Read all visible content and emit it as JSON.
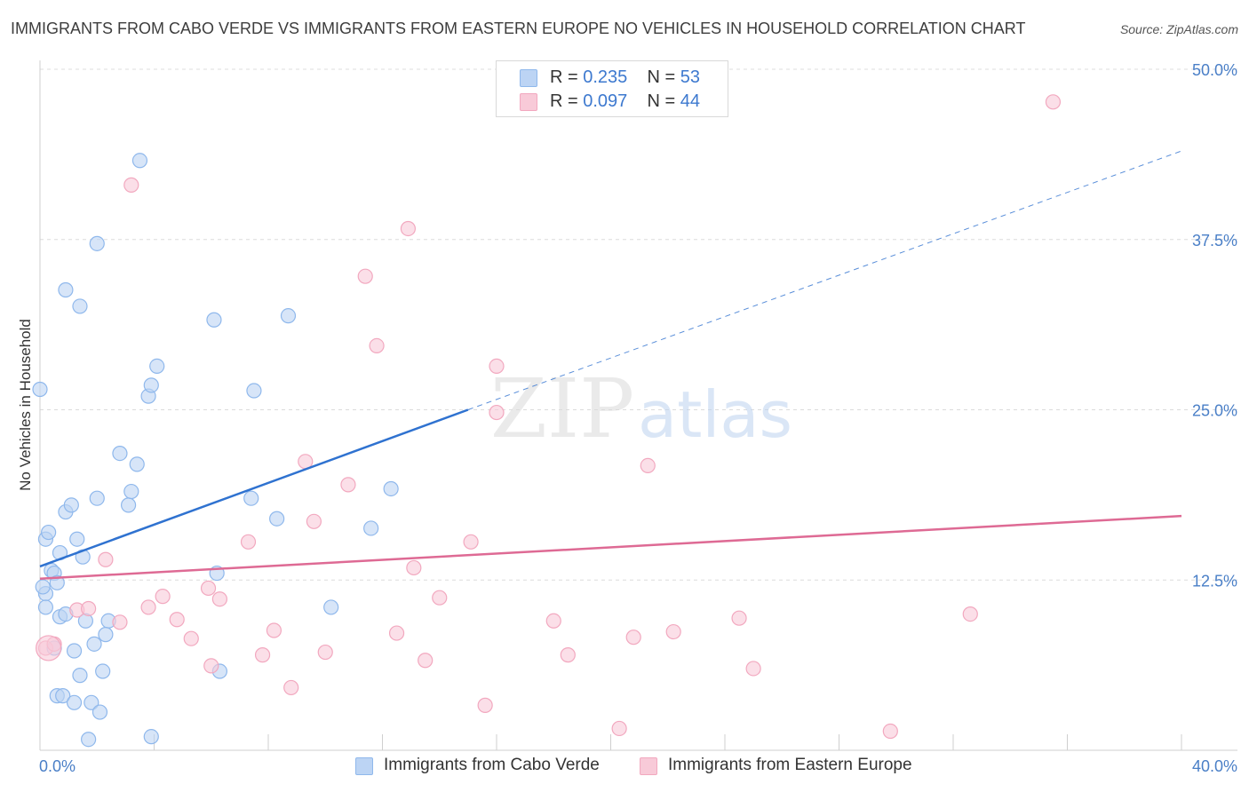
{
  "chart_data": {
    "type": "scatter",
    "title": "IMMIGRANTS FROM CABO VERDE VS IMMIGRANTS FROM EASTERN EUROPE NO VEHICLES IN HOUSEHOLD CORRELATION CHART",
    "source": "Source: ZipAtlas.com",
    "ylabel": "No Vehicles in Household",
    "xlabel": "",
    "xlim": [
      0,
      40
    ],
    "ylim": [
      0,
      50
    ],
    "y_ticks": [
      {
        "value": 12.5,
        "label": "12.5%"
      },
      {
        "value": 25.0,
        "label": "25.0%"
      },
      {
        "value": 37.5,
        "label": "37.5%"
      },
      {
        "value": 50.0,
        "label": "50.0%"
      }
    ],
    "x_tick_labels": {
      "min": "0.0%",
      "max": "40.0%"
    },
    "watermark": {
      "zip": "ZIP",
      "atlas": "atlas"
    },
    "legend": [
      {
        "r_label": "R =",
        "r_value": "0.235",
        "n_label": "N =",
        "n_value": "53"
      },
      {
        "r_label": "R =",
        "r_value": "0.097",
        "n_label": "N =",
        "n_value": "44"
      }
    ],
    "series": [
      {
        "name": "Immigrants from Cabo Verde",
        "color": "#8fb8ec",
        "fill": "#bcd4f4",
        "line_color": "#2f72d0",
        "trend": {
          "x0": 0,
          "y0": 13.5,
          "x1": 15,
          "y1": 25.0,
          "dashed_to_x": 40,
          "dashed_to_y": 44.0
        },
        "points": [
          [
            0.0,
            26.5
          ],
          [
            0.2,
            15.5
          ],
          [
            0.3,
            16.0
          ],
          [
            0.4,
            13.2
          ],
          [
            0.5,
            13.0
          ],
          [
            0.6,
            12.3
          ],
          [
            0.2,
            11.5
          ],
          [
            0.2,
            10.5
          ],
          [
            0.7,
            14.5
          ],
          [
            0.9,
            17.5
          ],
          [
            1.1,
            18.0
          ],
          [
            1.3,
            15.5
          ],
          [
            1.5,
            14.2
          ],
          [
            0.7,
            9.8
          ],
          [
            0.9,
            10.0
          ],
          [
            1.6,
            9.5
          ],
          [
            0.5,
            7.5
          ],
          [
            1.2,
            7.3
          ],
          [
            1.9,
            7.8
          ],
          [
            2.4,
            9.5
          ],
          [
            2.3,
            8.5
          ],
          [
            1.4,
            5.5
          ],
          [
            2.2,
            5.8
          ],
          [
            0.6,
            4.0
          ],
          [
            0.8,
            4.0
          ],
          [
            1.2,
            3.5
          ],
          [
            1.8,
            3.5
          ],
          [
            2.1,
            2.8
          ],
          [
            1.7,
            0.8
          ],
          [
            3.9,
            1.0
          ],
          [
            2.0,
            18.5
          ],
          [
            3.1,
            18.0
          ],
          [
            3.2,
            19.0
          ],
          [
            3.4,
            21.0
          ],
          [
            2.8,
            21.8
          ],
          [
            3.8,
            26.0
          ],
          [
            3.9,
            26.8
          ],
          [
            4.1,
            28.2
          ],
          [
            0.9,
            33.8
          ],
          [
            1.4,
            32.6
          ],
          [
            2.0,
            37.2
          ],
          [
            3.5,
            43.3
          ],
          [
            6.1,
            31.6
          ],
          [
            6.2,
            13.0
          ],
          [
            6.3,
            5.8
          ],
          [
            7.5,
            26.4
          ],
          [
            7.4,
            18.5
          ],
          [
            8.3,
            17.0
          ],
          [
            8.7,
            31.9
          ],
          [
            10.2,
            10.5
          ],
          [
            11.6,
            16.3
          ],
          [
            12.3,
            19.2
          ],
          [
            0.1,
            12.0
          ]
        ]
      },
      {
        "name": "Immigrants from Eastern Europe",
        "color": "#f2a8bf",
        "fill": "#f8cad8",
        "line_color": "#de6a94",
        "trend": {
          "x0": 0,
          "y0": 12.6,
          "x1": 40,
          "y1": 17.2
        },
        "points": [
          [
            0.2,
            7.5
          ],
          [
            0.5,
            7.8
          ],
          [
            1.3,
            10.3
          ],
          [
            1.7,
            10.4
          ],
          [
            2.3,
            14.0
          ],
          [
            2.8,
            9.4
          ],
          [
            3.8,
            10.5
          ],
          [
            4.3,
            11.3
          ],
          [
            4.8,
            9.6
          ],
          [
            5.3,
            8.2
          ],
          [
            5.9,
            11.9
          ],
          [
            6.0,
            6.2
          ],
          [
            6.3,
            11.1
          ],
          [
            7.3,
            15.3
          ],
          [
            7.8,
            7.0
          ],
          [
            8.2,
            8.8
          ],
          [
            8.8,
            4.6
          ],
          [
            9.3,
            21.2
          ],
          [
            9.6,
            16.8
          ],
          [
            10.0,
            7.2
          ],
          [
            10.8,
            19.5
          ],
          [
            11.4,
            34.8
          ],
          [
            11.8,
            29.7
          ],
          [
            12.5,
            8.6
          ],
          [
            12.9,
            38.3
          ],
          [
            13.1,
            13.4
          ],
          [
            13.5,
            6.6
          ],
          [
            14.0,
            11.2
          ],
          [
            15.1,
            15.3
          ],
          [
            15.6,
            3.3
          ],
          [
            16.0,
            24.8
          ],
          [
            16.0,
            28.2
          ],
          [
            18.0,
            9.5
          ],
          [
            18.5,
            7.0
          ],
          [
            20.3,
            1.6
          ],
          [
            20.8,
            8.3
          ],
          [
            21.3,
            20.9
          ],
          [
            22.2,
            8.7
          ],
          [
            24.5,
            9.7
          ],
          [
            25.0,
            6.0
          ],
          [
            29.8,
            1.4
          ],
          [
            32.6,
            10.0
          ],
          [
            35.5,
            47.6
          ],
          [
            3.2,
            41.5
          ]
        ]
      }
    ]
  },
  "bottom_legend": {
    "series1_label": "Immigrants from Cabo Verde",
    "series2_label": "Immigrants from Eastern Europe"
  }
}
